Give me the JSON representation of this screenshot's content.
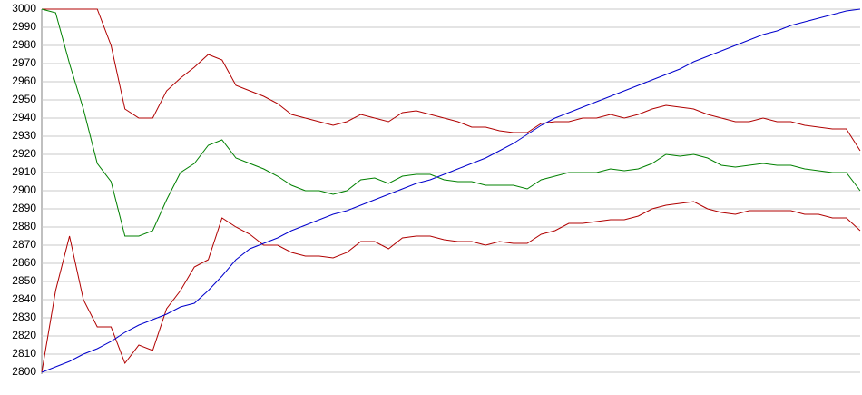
{
  "chart_data": {
    "type": "line",
    "categories": [
      null,
      null,
      null,
      null,
      null,
      null,
      null,
      null,
      null,
      null,
      null,
      null,
      null,
      null,
      null,
      null,
      null,
      null,
      null,
      null,
      null,
      null,
      null,
      null,
      null,
      null,
      null,
      null,
      null,
      null,
      null,
      null,
      null,
      null,
      null,
      null,
      null,
      null,
      null,
      null,
      null,
      null,
      null,
      null,
      null,
      null,
      null,
      null,
      null,
      null,
      null,
      null,
      null,
      null,
      null,
      null,
      null,
      null,
      null,
      null
    ],
    "series": [
      {
        "color": "#b00000",
        "values": [
          3000,
          3000,
          3000,
          3000,
          3000,
          2980,
          2945,
          2940,
          2940,
          2955,
          2962,
          2968,
          2975,
          2972,
          2958,
          2955,
          2952,
          2948,
          2942,
          2940,
          2938,
          2936,
          2938,
          2942,
          2940,
          2938,
          2943,
          2944,
          2942,
          2940,
          2938,
          2935,
          2935,
          2933,
          2932,
          2932,
          2937,
          2938,
          2938,
          2940,
          2940,
          2942,
          2940,
          2942,
          2945,
          2947,
          2946,
          2945,
          2942,
          2940,
          2938,
          2938,
          2940,
          2938,
          2938,
          2936,
          2935,
          2934,
          2934,
          2922
        ]
      },
      {
        "color": "#008000",
        "values": [
          3000,
          2998,
          2970,
          2945,
          2915,
          2905,
          2875,
          2875,
          2878,
          2895,
          2910,
          2915,
          2925,
          2928,
          2918,
          2915,
          2912,
          2908,
          2903,
          2900,
          2900,
          2898,
          2900,
          2906,
          2907,
          2904,
          2908,
          2909,
          2909,
          2906,
          2905,
          2905,
          2903,
          2903,
          2903,
          2901,
          2906,
          2908,
          2910,
          2910,
          2910,
          2912,
          2911,
          2912,
          2915,
          2920,
          2919,
          2920,
          2918,
          2914,
          2913,
          2914,
          2915,
          2914,
          2914,
          2912,
          2911,
          2910,
          2910,
          2900
        ]
      },
      {
        "color": "#b00000",
        "values": [
          2800,
          2845,
          2875,
          2840,
          2825,
          2825,
          2805,
          2815,
          2812,
          2835,
          2845,
          2858,
          2862,
          2885,
          2880,
          2876,
          2870,
          2870,
          2866,
          2864,
          2864,
          2863,
          2866,
          2872,
          2872,
          2868,
          2874,
          2875,
          2875,
          2873,
          2872,
          2872,
          2870,
          2872,
          2871,
          2871,
          2876,
          2878,
          2882,
          2882,
          2883,
          2884,
          2884,
          2886,
          2890,
          2892,
          2893,
          2894,
          2890,
          2888,
          2887,
          2889,
          2889,
          2889,
          2889,
          2887,
          2887,
          2885,
          2885,
          2878
        ]
      },
      {
        "color": "#0000cc",
        "values": [
          2800,
          2803,
          2806,
          2810,
          2813,
          2817,
          2822,
          2826,
          2829,
          2832,
          2836,
          2838,
          2845,
          2853,
          2862,
          2868,
          2871,
          2874,
          2878,
          2881,
          2884,
          2887,
          2889,
          2892,
          2895,
          2898,
          2901,
          2904,
          2906,
          2909,
          2912,
          2915,
          2918,
          2922,
          2926,
          2931,
          2936,
          2940,
          2943,
          2946,
          2949,
          2952,
          2955,
          2958,
          2961,
          2964,
          2967,
          2971,
          2974,
          2977,
          2980,
          2983,
          2986,
          2988,
          2991,
          2993,
          2995,
          2997,
          2999,
          3000
        ]
      }
    ],
    "ylim": [
      2800,
      3000
    ],
    "yticks": [
      2800,
      2810,
      2820,
      2830,
      2840,
      2850,
      2860,
      2870,
      2880,
      2890,
      2900,
      2910,
      2920,
      2930,
      2940,
      2950,
      2960,
      2970,
      2980,
      2990,
      3000
    ],
    "grid": true
  }
}
